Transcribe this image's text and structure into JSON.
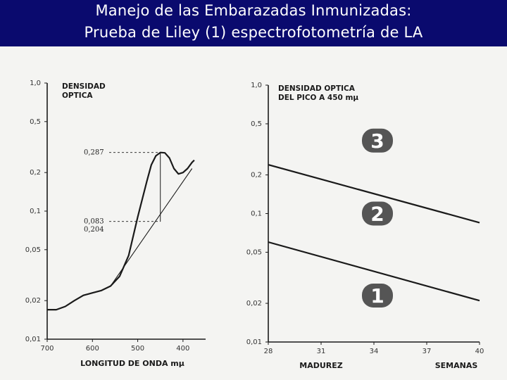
{
  "title": {
    "line1": "Manejo de las Embarazadas Inmunizadas:",
    "line2": "Prueba de Liley (1) espectrofotometría de LA"
  },
  "colors": {
    "title_bg": "#0a0a6e",
    "title_text": "#ffffff",
    "ink": "#1a1a1a",
    "badge": "#555555"
  },
  "chart_data": [
    {
      "type": "line",
      "ylabel_lines": [
        "DENSIDAD",
        "OPTICA"
      ],
      "xlabel": "LONGITUD DE ONDA mμ",
      "y_scale": "log",
      "ylim": [
        0.01,
        1.0
      ],
      "y_ticks": [
        {
          "v": 1.0,
          "label": "1,0"
        },
        {
          "v": 0.5,
          "label": "0,5"
        },
        {
          "v": 0.2,
          "label": "0,2"
        },
        {
          "v": 0.1,
          "label": "0,1"
        },
        {
          "v": 0.05,
          "label": "0,05"
        },
        {
          "v": 0.02,
          "label": "0,02"
        },
        {
          "v": 0.01,
          "label": "0,01"
        }
      ],
      "xlim": [
        700,
        350
      ],
      "x_ticks": [
        {
          "v": 700,
          "label": "700"
        },
        {
          "v": 600,
          "label": "600"
        },
        {
          "v": 500,
          "label": "500"
        },
        {
          "v": 400,
          "label": "400"
        }
      ],
      "series": [
        {
          "role": "curve",
          "x": [
            700,
            680,
            660,
            640,
            620,
            600,
            580,
            560,
            540,
            520,
            500,
            480,
            470,
            460,
            450,
            440,
            430,
            420,
            410,
            400,
            390,
            380,
            375
          ],
          "y": [
            0.017,
            0.017,
            0.018,
            0.02,
            0.022,
            0.023,
            0.024,
            0.026,
            0.031,
            0.045,
            0.09,
            0.17,
            0.23,
            0.27,
            0.287,
            0.285,
            0.26,
            0.215,
            0.195,
            0.2,
            0.215,
            0.24,
            0.25
          ]
        },
        {
          "role": "baseline",
          "x": [
            560,
            380
          ],
          "y": [
            0.026,
            0.215
          ]
        }
      ],
      "annotations": [
        {
          "label": "0,287",
          "x": 450,
          "y": 0.287
        },
        {
          "label": "0,083",
          "x": 450,
          "y": 0.083
        },
        {
          "label": "0,204",
          "x": 450,
          "y": 0.072
        }
      ],
      "marker_line": {
        "x": 450,
        "y_top": 0.287,
        "y_bottom": 0.083
      }
    },
    {
      "type": "line",
      "ylabel_lines": [
        "DENSIDAD OPTICA",
        "DEL PICO A 450 mμ"
      ],
      "xlabel": "MADUREZ",
      "xlabel2": "SEMANAS",
      "y_scale": "log",
      "ylim": [
        0.01,
        1.0
      ],
      "y_ticks": [
        {
          "v": 1.0,
          "label": "1,0"
        },
        {
          "v": 0.5,
          "label": "0,5"
        },
        {
          "v": 0.2,
          "label": "0,2"
        },
        {
          "v": 0.1,
          "label": "0,1"
        },
        {
          "v": 0.05,
          "label": "0,05"
        },
        {
          "v": 0.02,
          "label": "0,02"
        },
        {
          "v": 0.01,
          "label": "0,01"
        }
      ],
      "xlim": [
        28,
        40
      ],
      "x_ticks": [
        {
          "v": 28,
          "label": "28"
        },
        {
          "v": 31,
          "label": "31"
        },
        {
          "v": 34,
          "label": "34"
        },
        {
          "v": 37,
          "label": "37"
        },
        {
          "v": 40,
          "label": "40"
        }
      ],
      "series": [
        {
          "role": "upper",
          "x": [
            28,
            40
          ],
          "y": [
            0.24,
            0.085
          ]
        },
        {
          "role": "lower",
          "x": [
            28,
            40
          ],
          "y": [
            0.06,
            0.021
          ]
        }
      ],
      "zones": [
        {
          "label": "3",
          "x": 34.2,
          "y": 0.37
        },
        {
          "label": "2",
          "x": 34.2,
          "y": 0.1
        },
        {
          "label": "1",
          "x": 34.2,
          "y": 0.023
        }
      ]
    }
  ]
}
